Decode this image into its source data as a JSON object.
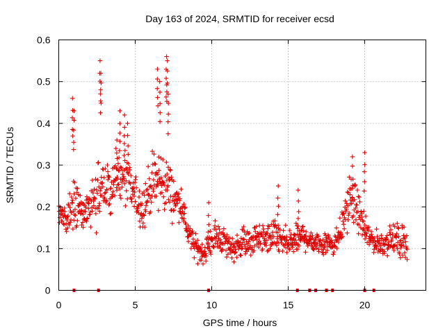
{
  "chart_data": {
    "type": "scatter",
    "title": "Day 163 of 2024, SRMTID for receiver ecsd",
    "xlabel": "GPS time / hours",
    "ylabel": "SRMTID / TECUs",
    "xlim": [
      0,
      24
    ],
    "ylim": [
      0,
      0.6
    ],
    "xticks": [
      0,
      5,
      10,
      15,
      20
    ],
    "xtick_labels": [
      "0",
      "5",
      "10",
      "15",
      "20"
    ],
    "yticks": [
      0,
      0.1,
      0.2,
      0.3,
      0.4,
      0.5,
      0.6
    ],
    "ytick_labels": [
      "0",
      "0.1",
      "0.2",
      "0.3",
      "0.4",
      "0.5",
      "0.6"
    ],
    "grid": true,
    "marker": "+",
    "color": "#e00000",
    "series": [
      {
        "name": "SRMTID",
        "profile_x": [
          0.0,
          0.5,
          1.0,
          1.5,
          2.0,
          2.5,
          3.0,
          3.5,
          4.0,
          4.5,
          5.0,
          5.5,
          6.0,
          6.5,
          7.0,
          7.5,
          8.0,
          8.5,
          9.0,
          9.5,
          10.0,
          10.5,
          11.0,
          11.5,
          12.0,
          12.5,
          13.0,
          13.5,
          14.0,
          14.5,
          15.0,
          15.5,
          16.0,
          16.5,
          17.0,
          17.5,
          18.0,
          18.5,
          19.0,
          19.5,
          20.0,
          20.5,
          21.0,
          21.5,
          22.0,
          22.5,
          22.8
        ],
        "profile_median": [
          0.19,
          0.17,
          0.21,
          0.18,
          0.2,
          0.22,
          0.24,
          0.25,
          0.27,
          0.26,
          0.22,
          0.2,
          0.25,
          0.26,
          0.26,
          0.22,
          0.21,
          0.13,
          0.1,
          0.09,
          0.12,
          0.13,
          0.11,
          0.1,
          0.12,
          0.11,
          0.13,
          0.12,
          0.13,
          0.12,
          0.11,
          0.12,
          0.13,
          0.12,
          0.11,
          0.12,
          0.11,
          0.15,
          0.22,
          0.2,
          0.14,
          0.12,
          0.11,
          0.12,
          0.12,
          0.12,
          0.11
        ],
        "profile_spread": [
          0.05,
          0.05,
          0.1,
          0.07,
          0.07,
          0.1,
          0.1,
          0.08,
          0.1,
          0.09,
          0.07,
          0.08,
          0.09,
          0.12,
          0.11,
          0.07,
          0.05,
          0.05,
          0.04,
          0.04,
          0.05,
          0.05,
          0.05,
          0.04,
          0.05,
          0.05,
          0.05,
          0.05,
          0.06,
          0.05,
          0.05,
          0.05,
          0.05,
          0.04,
          0.04,
          0.05,
          0.04,
          0.06,
          0.08,
          0.07,
          0.05,
          0.04,
          0.04,
          0.05,
          0.05,
          0.06,
          0.05
        ],
        "peaks_x": [
          0.9,
          1.0,
          2.7,
          2.75,
          3.8,
          4.0,
          4.3,
          4.5,
          6.45,
          6.6,
          7.05,
          7.1,
          7.15,
          9.8,
          14.35,
          15.65,
          19.2,
          20.0
        ],
        "peaks_y": [
          0.46,
          0.43,
          0.55,
          0.52,
          0.36,
          0.43,
          0.42,
          0.4,
          0.53,
          0.5,
          0.56,
          0.55,
          0.47,
          0.21,
          0.25,
          0.24,
          0.32,
          0.33
        ],
        "data_range": [
          0,
          22.8
        ],
        "point_count": 1100
      }
    ],
    "zero_markers_x": [
      1.0,
      2.6,
      9.8,
      15.6,
      16.4,
      16.8,
      17.5,
      17.9,
      20.0,
      20.6
    ]
  }
}
